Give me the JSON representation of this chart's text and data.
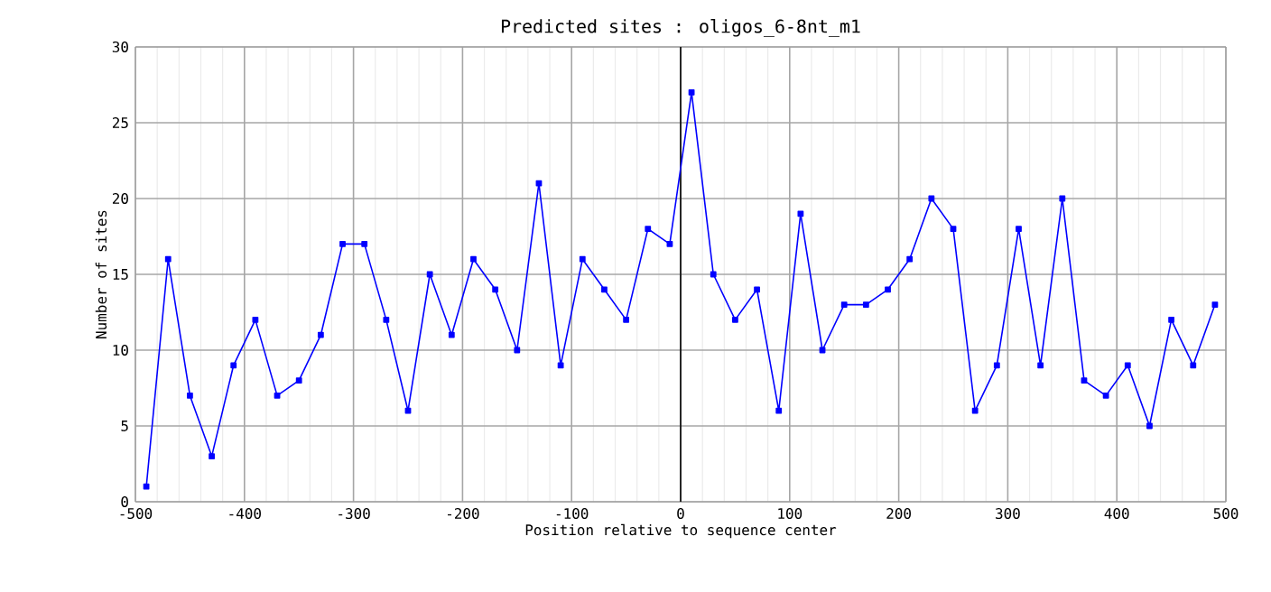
{
  "chart_data": {
    "type": "line",
    "title": "Predicted sites : oligos_6-8nt_m1",
    "xlabel": "Position relative to sequence center",
    "ylabel": "Number of sites",
    "x": [
      -490,
      -470,
      -450,
      -430,
      -410,
      -390,
      -370,
      -350,
      -330,
      -310,
      -290,
      -270,
      -250,
      -230,
      -210,
      -190,
      -170,
      -150,
      -130,
      -110,
      -90,
      -70,
      -50,
      -30,
      -10,
      10,
      30,
      50,
      70,
      90,
      110,
      130,
      150,
      170,
      190,
      210,
      230,
      250,
      270,
      290,
      310,
      330,
      350,
      370,
      390,
      410,
      430,
      450,
      470,
      490
    ],
    "series": [
      {
        "color": "#0000ff",
        "values": [
          1,
          16,
          7,
          3,
          9,
          12,
          7,
          8,
          11,
          17,
          17,
          12,
          6,
          15,
          11,
          16,
          14,
          10,
          21,
          9,
          16,
          14,
          12,
          18,
          17,
          27,
          15,
          12,
          14,
          6,
          19,
          10,
          13,
          13,
          14,
          16,
          20,
          18,
          6,
          9,
          18,
          9,
          20,
          8,
          7,
          9,
          5,
          12,
          9,
          13
        ]
      }
    ],
    "xlim": [
      -500,
      500
    ],
    "xticks": [
      -500,
      -400,
      -300,
      -200,
      -100,
      0,
      100,
      200,
      300,
      400,
      500
    ],
    "ylim": [
      0,
      30
    ],
    "yticks": [
      0,
      5,
      10,
      15,
      20,
      25,
      30
    ],
    "ref_lines": [
      {
        "axis": "x",
        "value": 0,
        "color": "#000000"
      }
    ],
    "grid": true,
    "marker": "square",
    "line_style": "solid"
  }
}
